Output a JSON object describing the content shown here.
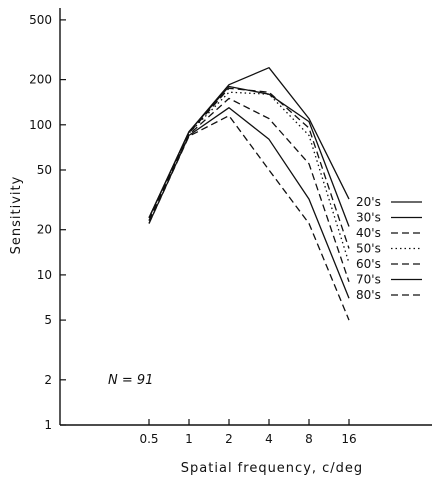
{
  "chart_data": {
    "type": "line",
    "xlabel": "Spatial frequency,  c/deg",
    "ylabel": "Sensitivity",
    "x_scale": "log",
    "y_scale": "log",
    "xlim": [
      0.25,
      45
    ],
    "ylim": [
      1,
      600
    ],
    "x_ticks": [
      0.5,
      1,
      2,
      4,
      8,
      16
    ],
    "x_tick_labels": [
      "0.5",
      "1",
      "2",
      "4",
      "8",
      "16"
    ],
    "y_ticks": [
      1,
      2,
      5,
      10,
      20,
      50,
      100,
      200,
      500
    ],
    "y_tick_labels": [
      "1",
      "2",
      "5",
      "10",
      "20",
      "50",
      "100",
      "200",
      "500"
    ],
    "annotation": "N = 91",
    "x": [
      0.5,
      1,
      2,
      4,
      8,
      16
    ],
    "series": [
      {
        "name": "20's",
        "dash": "solid",
        "values": [
          24,
          90,
          185,
          240,
          110,
          32
        ]
      },
      {
        "name": "30's",
        "dash": "solid",
        "values": [
          24,
          90,
          180,
          160,
          105,
          21
        ]
      },
      {
        "name": "40's",
        "dash": "dashed",
        "values": [
          23,
          88,
          175,
          165,
          95,
          15
        ]
      },
      {
        "name": "50's",
        "dash": "dotted",
        "values": [
          24,
          88,
          165,
          160,
          85,
          12
        ]
      },
      {
        "name": "60's",
        "dash": "dashed",
        "values": [
          23,
          86,
          150,
          110,
          55,
          9
        ]
      },
      {
        "name": "70's",
        "dash": "solid",
        "values": [
          22,
          85,
          130,
          80,
          32,
          7
        ]
      },
      {
        "name": "80's",
        "dash": "dashed",
        "values": [
          22,
          84,
          115,
          50,
          22,
          5
        ]
      }
    ],
    "grid": false,
    "legend_position": "right"
  }
}
